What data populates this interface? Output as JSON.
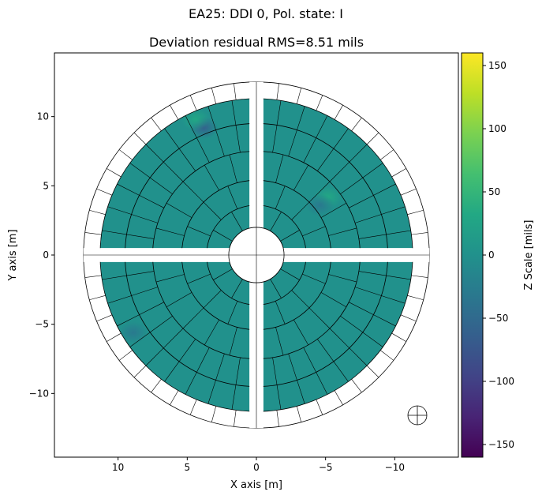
{
  "chart_data": {
    "type": "heatmap",
    "suptitle": "EA25: DDI 0, Pol. state: I",
    "title": "Deviation residual RMS=8.51 mils",
    "xlabel": "X axis [m]",
    "ylabel": "Y axis [m]",
    "colorbar_label": "Z Scale [mils]",
    "colormap": "viridis",
    "xlim": [
      14.6,
      -14.6
    ],
    "ylim": [
      -14.6,
      14.6
    ],
    "x_inverted": true,
    "clim": [
      -160,
      160
    ],
    "xticks": [
      10,
      5,
      0,
      -5,
      -10
    ],
    "xtick_labels": [
      "10",
      "5",
      "0",
      "−5",
      "−10"
    ],
    "yticks": [
      10,
      5,
      0,
      -5,
      -10
    ],
    "ytick_labels": [
      "10",
      "5",
      "0",
      "−5",
      "−10"
    ],
    "cbar_ticks": [
      150,
      100,
      50,
      0,
      -50,
      -100,
      -150
    ],
    "cbar_tick_labels": [
      "150",
      "100",
      "50",
      "0",
      "−50",
      "−100",
      "−150"
    ],
    "ring_radii_m": [
      2.0,
      3.6,
      5.4,
      7.5,
      9.5,
      11.3,
      12.5
    ],
    "ring_panel_counts": [
      12,
      16,
      24,
      40,
      40,
      48
    ],
    "cross_gap_half_width_m": 0.5,
    "feed_hole_radius_m": 1.9,
    "background_deviation_mils": 0,
    "hotspots": [
      {
        "x": -5.2,
        "y": 4.2,
        "value": 45
      },
      {
        "x": -4.6,
        "y": 3.6,
        "value": -40
      },
      {
        "x": 3.8,
        "y": 9.2,
        "value": -70
      },
      {
        "x": 4.4,
        "y": 9.8,
        "value": 30
      },
      {
        "x": 8.9,
        "y": -5.6,
        "value": -45
      },
      {
        "x": -2.0,
        "y": -3.2,
        "value": 10
      },
      {
        "x": 6.0,
        "y": 2.6,
        "value": -15
      }
    ],
    "grid": false,
    "legend": "none"
  }
}
